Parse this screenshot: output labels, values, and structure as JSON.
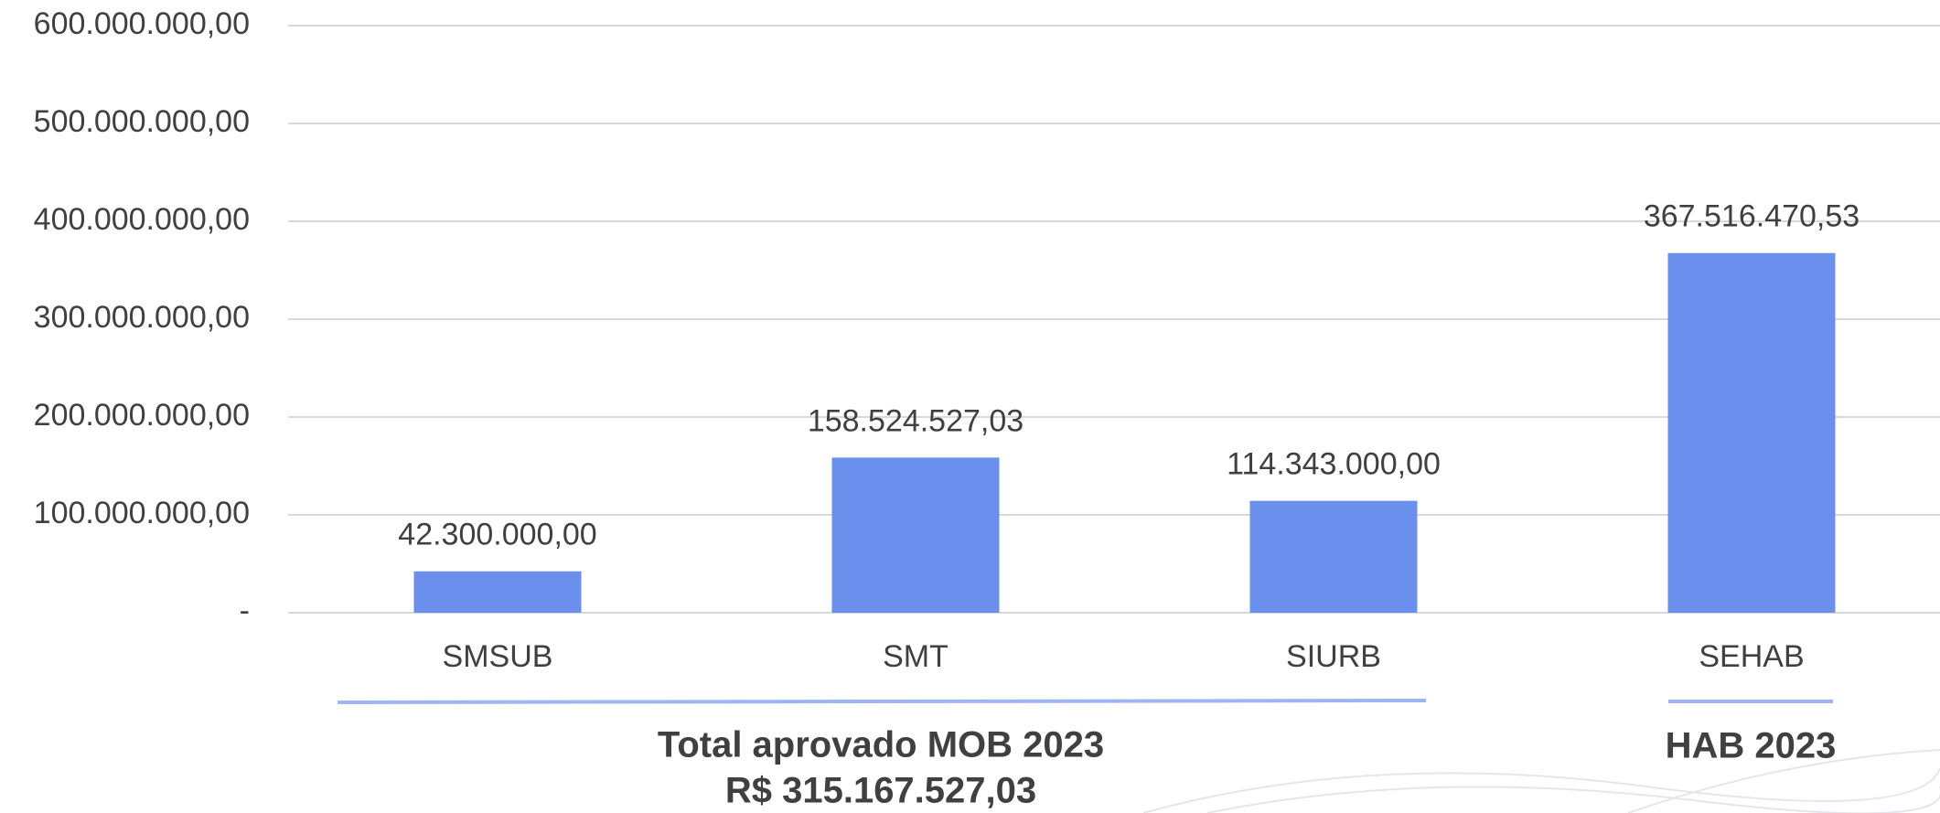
{
  "chart_data": {
    "type": "bar",
    "categories": [
      "SMSUB",
      "SMT",
      "SIURB",
      "SEHAB"
    ],
    "values": [
      42300000,
      158524527.03,
      114343000,
      367516470.53
    ],
    "value_labels": [
      "42.300.000,00",
      "158.524.527,03",
      "114.343.000,00",
      "367.516.470,53"
    ],
    "color": "#6a8fec",
    "ylim": [
      0,
      600000000
    ],
    "yticks": [
      {
        "value": 0,
        "label": "-"
      },
      {
        "value": 100000000,
        "label": "100.000.000,00"
      },
      {
        "value": 200000000,
        "label": "200.000.000,00"
      },
      {
        "value": 300000000,
        "label": "300.000.000,00"
      },
      {
        "value": 400000000,
        "label": "400.000.000,00"
      },
      {
        "value": 500000000,
        "label": "500.000.000,00"
      },
      {
        "value": 600000000,
        "label": "600.000.000,00"
      }
    ],
    "grid": true,
    "groups": [
      {
        "label": "Total aprovado MOB 2023",
        "total": "R$  315.167.527,03"
      },
      {
        "label": "HAB 2023"
      }
    ]
  }
}
